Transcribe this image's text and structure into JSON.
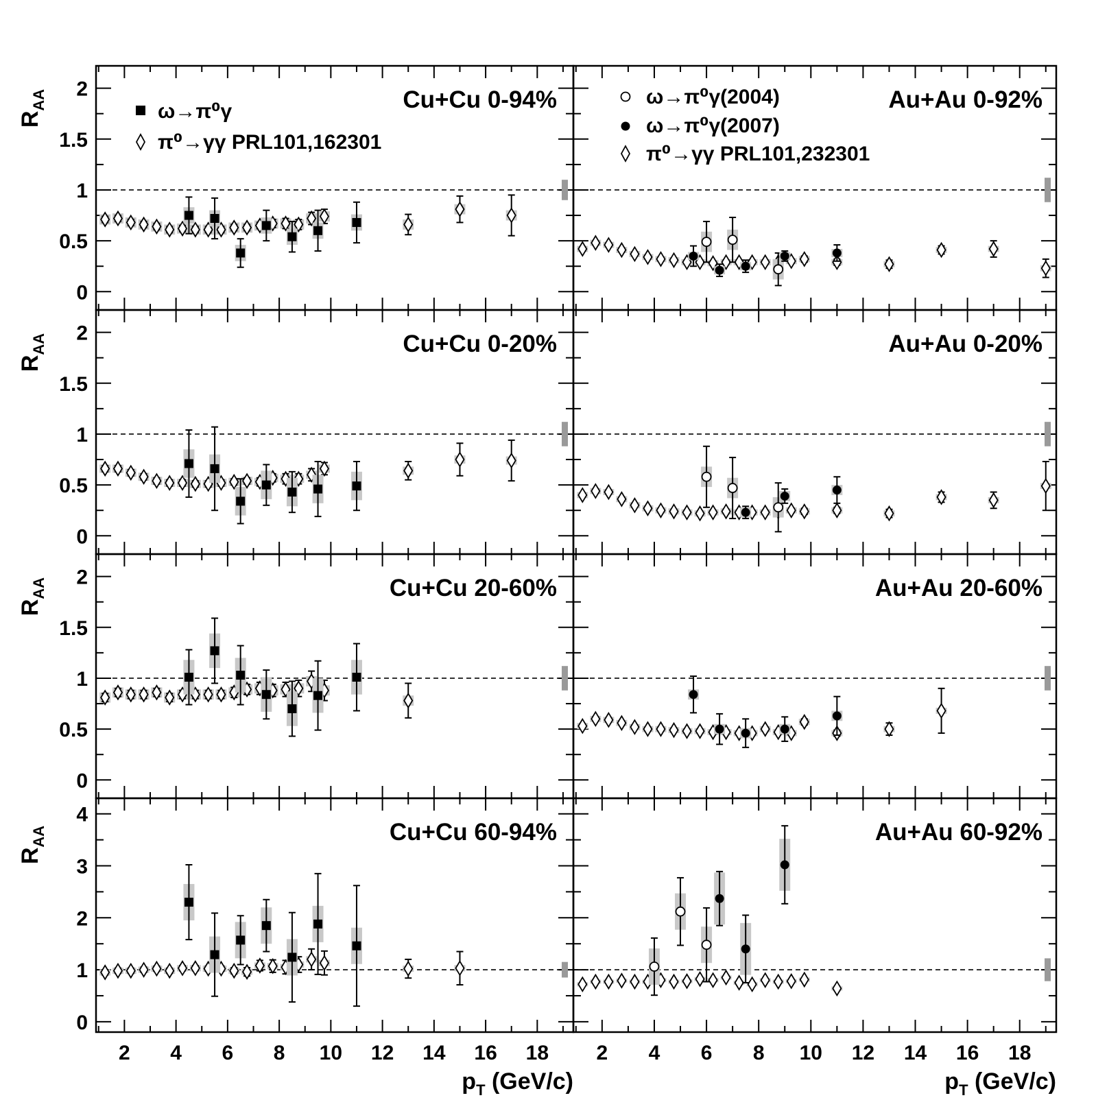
{
  "figure": {
    "y_axis_title": "R",
    "y_axis_subscript": "AA",
    "x_axis_title": "p",
    "x_axis_subscript": "T",
    "x_axis_unit": " (GeV/c)",
    "x_tick_labels": [
      "2",
      "4",
      "6",
      "8",
      "10",
      "12",
      "14",
      "16",
      "18"
    ],
    "y_tick_labels_upper": [
      "0",
      "0.5",
      "1",
      "1.5",
      "2"
    ],
    "y_tick_labels_bottom": [
      "0",
      "1",
      "2",
      "3",
      "4"
    ]
  },
  "legends": {
    "left": [
      {
        "marker": "filled-square",
        "text": "ω→π⁰γ"
      },
      {
        "marker": "open-diamond",
        "text": "π⁰→γγ PRL101,162301"
      }
    ],
    "right": [
      {
        "marker": "open-circle",
        "text": "ω→π⁰γ(2004)"
      },
      {
        "marker": "filled-circle",
        "text": "ω→π⁰γ(2007)"
      },
      {
        "marker": "open-diamond",
        "text": "π⁰→γγ PRL101,232301"
      }
    ]
  },
  "chart_data": [
    {
      "type": "scatter",
      "title": "Cu+Cu 0-94%",
      "xlabel": "",
      "ylabel": "R_AA",
      "xlim": [
        0.9,
        19.4
      ],
      "ylim": [
        -0.18,
        2.22
      ],
      "reference_line": 1,
      "norm_uncertainty": 0.1,
      "series": [
        {
          "name": "π⁰→γγ PRL101,162301",
          "marker": "open-diamond",
          "syst": 0.05,
          "x": [
            1.25,
            1.75,
            2.25,
            2.75,
            3.25,
            3.75,
            4.25,
            4.75,
            5.25,
            5.75,
            6.25,
            6.75,
            7.25,
            7.75,
            8.25,
            8.75,
            9.25,
            9.75,
            13,
            15,
            17
          ],
          "y": [
            0.71,
            0.72,
            0.68,
            0.66,
            0.64,
            0.61,
            0.62,
            0.61,
            0.61,
            0.61,
            0.63,
            0.63,
            0.65,
            0.67,
            0.67,
            0.66,
            0.72,
            0.74,
            0.66,
            0.81,
            0.75
          ],
          "err": [
            0.03,
            0.03,
            0.03,
            0.03,
            0.03,
            0.03,
            0.03,
            0.03,
            0.03,
            0.03,
            0.03,
            0.03,
            0.03,
            0.04,
            0.05,
            0.05,
            0.06,
            0.07,
            0.1,
            0.13,
            0.2
          ]
        },
        {
          "name": "ω→π⁰γ",
          "marker": "filled-square",
          "syst": 0.08,
          "x": [
            4.5,
            5.5,
            6.5,
            7.5,
            8.5,
            9.5,
            11
          ],
          "y": [
            0.75,
            0.72,
            0.38,
            0.65,
            0.54,
            0.6,
            0.68
          ],
          "err": [
            0.18,
            0.2,
            0.14,
            0.15,
            0.15,
            0.2,
            0.2
          ]
        }
      ]
    },
    {
      "type": "scatter",
      "title": "Au+Au 0-92%",
      "xlabel": "",
      "ylabel": "",
      "xlim": [
        0.9,
        19.4
      ],
      "ylim": [
        -0.18,
        2.22
      ],
      "reference_line": 1,
      "norm_uncertainty": 0.12,
      "series": [
        {
          "name": "π⁰→γγ PRL101,232301",
          "marker": "open-diamond",
          "syst": 0.03,
          "x": [
            1.25,
            1.75,
            2.25,
            2.75,
            3.25,
            3.75,
            4.25,
            4.75,
            5.25,
            5.75,
            6.25,
            6.75,
            7.25,
            7.75,
            8.25,
            8.75,
            9.25,
            9.75,
            11,
            13,
            15,
            17,
            19
          ],
          "y": [
            0.42,
            0.48,
            0.46,
            0.41,
            0.37,
            0.34,
            0.32,
            0.31,
            0.29,
            0.29,
            0.28,
            0.29,
            0.29,
            0.29,
            0.29,
            0.29,
            0.3,
            0.32,
            0.29,
            0.27,
            0.41,
            0.42,
            0.23
          ],
          "err": [
            0.02,
            0.02,
            0.02,
            0.02,
            0.02,
            0.02,
            0.02,
            0.02,
            0.02,
            0.02,
            0.02,
            0.02,
            0.02,
            0.02,
            0.02,
            0.02,
            0.02,
            0.03,
            0.03,
            0.04,
            0.04,
            0.08,
            0.09
          ]
        },
        {
          "name": "ω→π⁰γ(2004)",
          "marker": "open-circle",
          "syst": 0.1,
          "x": [
            6,
            7,
            8.75
          ],
          "y": [
            0.49,
            0.51,
            0.22
          ],
          "err": [
            0.2,
            0.22,
            0.16
          ]
        },
        {
          "name": "ω→π⁰γ(2007)",
          "marker": "filled-circle",
          "syst": 0.04,
          "x": [
            5.5,
            6.5,
            7.5,
            9,
            11
          ],
          "y": [
            0.35,
            0.21,
            0.25,
            0.35,
            0.38
          ],
          "err": [
            0.1,
            0.06,
            0.06,
            0.05,
            0.08
          ]
        }
      ]
    },
    {
      "type": "scatter",
      "title": "Cu+Cu 0-20%",
      "xlabel": "",
      "ylabel": "R_AA",
      "xlim": [
        0.9,
        19.4
      ],
      "ylim": [
        -0.18,
        2.22
      ],
      "reference_line": 1,
      "norm_uncertainty": 0.12,
      "series": [
        {
          "name": "π⁰→γγ PRL101,162301",
          "marker": "open-diamond",
          "syst": 0.04,
          "x": [
            1.25,
            1.75,
            2.25,
            2.75,
            3.25,
            3.75,
            4.25,
            4.75,
            5.25,
            5.75,
            6.25,
            6.75,
            7.25,
            7.75,
            8.25,
            8.75,
            9.25,
            9.75,
            13,
            15,
            17
          ],
          "y": [
            0.66,
            0.66,
            0.62,
            0.58,
            0.54,
            0.52,
            0.52,
            0.51,
            0.51,
            0.52,
            0.53,
            0.54,
            0.53,
            0.57,
            0.56,
            0.56,
            0.6,
            0.66,
            0.64,
            0.75,
            0.74
          ],
          "err": [
            0.03,
            0.03,
            0.03,
            0.03,
            0.03,
            0.03,
            0.03,
            0.03,
            0.03,
            0.03,
            0.03,
            0.03,
            0.04,
            0.04,
            0.05,
            0.05,
            0.06,
            0.06,
            0.09,
            0.16,
            0.2
          ]
        },
        {
          "name": "ω→π⁰γ",
          "marker": "filled-square",
          "syst": 0.14,
          "x": [
            4.5,
            5.5,
            6.5,
            7.5,
            8.5,
            9.5,
            11
          ],
          "y": [
            0.71,
            0.66,
            0.34,
            0.5,
            0.43,
            0.46,
            0.49
          ],
          "err": [
            0.33,
            0.41,
            0.22,
            0.2,
            0.2,
            0.27,
            0.24
          ]
        }
      ]
    },
    {
      "type": "scatter",
      "title": "Au+Au 0-20%",
      "xlabel": "",
      "ylabel": "",
      "xlim": [
        0.9,
        19.4
      ],
      "ylim": [
        -0.18,
        2.22
      ],
      "reference_line": 1,
      "norm_uncertainty": 0.12,
      "series": [
        {
          "name": "π⁰→γγ PRL101,232301",
          "marker": "open-diamond",
          "syst": 0.03,
          "x": [
            1.25,
            1.75,
            2.25,
            2.75,
            3.25,
            3.75,
            4.25,
            4.75,
            5.25,
            5.75,
            6.25,
            6.75,
            7.25,
            7.75,
            8.25,
            8.75,
            9.25,
            9.75,
            11,
            13,
            15,
            17,
            19
          ],
          "y": [
            0.4,
            0.44,
            0.43,
            0.36,
            0.3,
            0.27,
            0.25,
            0.24,
            0.23,
            0.22,
            0.23,
            0.24,
            0.23,
            0.23,
            0.23,
            0.24,
            0.25,
            0.24,
            0.25,
            0.22,
            0.38,
            0.35,
            0.49
          ],
          "err": [
            0.02,
            0.02,
            0.02,
            0.02,
            0.02,
            0.02,
            0.02,
            0.02,
            0.02,
            0.02,
            0.02,
            0.02,
            0.02,
            0.02,
            0.02,
            0.02,
            0.02,
            0.03,
            0.03,
            0.04,
            0.05,
            0.08,
            0.24
          ]
        },
        {
          "name": "ω→π⁰γ(2004)",
          "marker": "open-circle",
          "syst": 0.1,
          "x": [
            6,
            7,
            8.75
          ],
          "y": [
            0.58,
            0.47,
            0.28
          ],
          "err": [
            0.3,
            0.3,
            0.24
          ]
        },
        {
          "name": "ω→π⁰γ(2007)",
          "marker": "filled-circle",
          "syst": 0.05,
          "x": [
            7.5,
            9,
            11
          ],
          "y": [
            0.23,
            0.39,
            0.45
          ],
          "err": [
            0.06,
            0.07,
            0.13
          ]
        }
      ]
    },
    {
      "type": "scatter",
      "title": "Cu+Cu 20-60%",
      "xlabel": "",
      "ylabel": "R_AA",
      "xlim": [
        0.9,
        19.4
      ],
      "ylim": [
        -0.18,
        2.22
      ],
      "reference_line": 1,
      "norm_uncertainty": 0.12,
      "series": [
        {
          "name": "π⁰→γγ PRL101,162301",
          "marker": "open-diamond",
          "syst": 0.05,
          "x": [
            1.25,
            1.75,
            2.25,
            2.75,
            3.25,
            3.75,
            4.25,
            4.75,
            5.25,
            5.75,
            6.25,
            6.75,
            7.25,
            7.75,
            8.25,
            8.75,
            9.25,
            9.75,
            13
          ],
          "y": [
            0.81,
            0.86,
            0.84,
            0.84,
            0.86,
            0.81,
            0.84,
            0.84,
            0.84,
            0.84,
            0.86,
            0.89,
            0.9,
            0.88,
            0.89,
            0.9,
            0.97,
            0.88,
            0.78
          ],
          "err": [
            0.04,
            0.04,
            0.04,
            0.04,
            0.04,
            0.04,
            0.04,
            0.04,
            0.04,
            0.04,
            0.05,
            0.05,
            0.06,
            0.06,
            0.07,
            0.08,
            0.1,
            0.1,
            0.17
          ]
        },
        {
          "name": "ω→π⁰γ",
          "marker": "filled-square",
          "syst": 0.17,
          "x": [
            4.5,
            5.5,
            6.5,
            7.5,
            8.5,
            9.5,
            11
          ],
          "y": [
            1.01,
            1.27,
            1.03,
            0.84,
            0.7,
            0.83,
            1.01
          ],
          "err": [
            0.27,
            0.32,
            0.29,
            0.24,
            0.27,
            0.34,
            0.33
          ]
        }
      ]
    },
    {
      "type": "scatter",
      "title": "Au+Au 20-60%",
      "xlabel": "",
      "ylabel": "",
      "xlim": [
        0.9,
        19.4
      ],
      "ylim": [
        -0.18,
        2.22
      ],
      "reference_line": 1,
      "norm_uncertainty": 0.12,
      "series": [
        {
          "name": "π⁰→γγ PRL101,232301",
          "marker": "open-diamond",
          "syst": 0.03,
          "x": [
            1.25,
            1.75,
            2.25,
            2.75,
            3.25,
            3.75,
            4.25,
            4.75,
            5.25,
            5.75,
            6.25,
            6.75,
            7.25,
            7.75,
            8.25,
            8.75,
            9.25,
            9.75,
            11,
            13,
            15
          ],
          "y": [
            0.53,
            0.6,
            0.59,
            0.56,
            0.52,
            0.5,
            0.5,
            0.49,
            0.48,
            0.48,
            0.47,
            0.47,
            0.46,
            0.46,
            0.5,
            0.47,
            0.46,
            0.57,
            0.46,
            0.5,
            0.68
          ],
          "err": [
            0.02,
            0.02,
            0.02,
            0.02,
            0.02,
            0.02,
            0.02,
            0.02,
            0.02,
            0.02,
            0.02,
            0.02,
            0.02,
            0.02,
            0.02,
            0.02,
            0.02,
            0.03,
            0.03,
            0.06,
            0.22
          ]
        },
        {
          "name": "ω→π⁰γ(2007)",
          "marker": "filled-circle",
          "syst": 0.05,
          "x": [
            5.5,
            6.5,
            7.5,
            9,
            11
          ],
          "y": [
            0.84,
            0.5,
            0.46,
            0.5,
            0.63
          ],
          "err": [
            0.18,
            0.15,
            0.14,
            0.12,
            0.19
          ]
        }
      ]
    },
    {
      "type": "scatter",
      "title": "Cu+Cu 60-94%",
      "xlabel": "p_T (GeV/c)",
      "ylabel": "R_AA",
      "xlim": [
        0.9,
        19.4
      ],
      "ylim": [
        -0.2,
        4.3
      ],
      "reference_line": 1,
      "norm_uncertainty": 0.15,
      "series": [
        {
          "name": "π⁰→γγ PRL101,162301",
          "marker": "open-diamond",
          "syst": 0.06,
          "x": [
            1.25,
            1.75,
            2.25,
            2.75,
            3.25,
            3.75,
            4.25,
            4.75,
            5.25,
            5.75,
            6.25,
            6.75,
            7.25,
            7.75,
            8.25,
            8.75,
            9.25,
            9.75,
            13,
            15
          ],
          "y": [
            0.95,
            0.98,
            0.98,
            1.0,
            1.02,
            0.98,
            1.03,
            1.03,
            1.02,
            1.02,
            0.98,
            0.96,
            1.08,
            1.07,
            1.05,
            1.1,
            1.2,
            1.13,
            1.02,
            1.03
          ],
          "err": [
            0.05,
            0.05,
            0.05,
            0.05,
            0.05,
            0.05,
            0.05,
            0.05,
            0.05,
            0.05,
            0.06,
            0.08,
            0.1,
            0.12,
            0.13,
            0.15,
            0.2,
            0.23,
            0.18,
            0.32
          ]
        },
        {
          "name": "ω→π⁰γ",
          "marker": "filled-square",
          "syst": 0.35,
          "x": [
            4.5,
            5.5,
            6.5,
            7.5,
            8.5,
            9.5,
            11
          ],
          "y": [
            2.3,
            1.29,
            1.57,
            1.85,
            1.24,
            1.88,
            1.46
          ],
          "err": [
            0.72,
            0.8,
            0.47,
            0.5,
            0.86,
            0.97,
            1.16
          ]
        }
      ]
    },
    {
      "type": "scatter",
      "title": "Au+Au 60-92%",
      "xlabel": "p_T (GeV/c)",
      "ylabel": "",
      "xlim": [
        0.9,
        19.4
      ],
      "ylim": [
        -0.2,
        4.3
      ],
      "reference_line": 1,
      "norm_uncertainty": 0.22,
      "series": [
        {
          "name": "π⁰→γγ PRL101,232301",
          "marker": "open-diamond",
          "syst": 0.04,
          "x": [
            1.25,
            1.75,
            2.25,
            2.75,
            3.25,
            3.75,
            4.25,
            4.75,
            5.25,
            5.75,
            6.25,
            6.75,
            7.25,
            7.75,
            8.25,
            8.75,
            9.25,
            9.75,
            11
          ],
          "y": [
            0.72,
            0.77,
            0.77,
            0.79,
            0.77,
            0.77,
            0.8,
            0.77,
            0.78,
            0.82,
            0.8,
            0.85,
            0.75,
            0.72,
            0.8,
            0.77,
            0.78,
            0.81,
            0.64
          ],
          "err": [
            0.03,
            0.03,
            0.03,
            0.03,
            0.03,
            0.03,
            0.03,
            0.03,
            0.03,
            0.03,
            0.03,
            0.03,
            0.03,
            0.03,
            0.03,
            0.03,
            0.03,
            0.03,
            0.04
          ]
        },
        {
          "name": "ω→π⁰γ(2004)",
          "marker": "open-circle",
          "syst": 0.35,
          "x": [
            4,
            5,
            6
          ],
          "y": [
            1.06,
            2.12,
            1.48
          ],
          "err": [
            0.55,
            0.65,
            0.71
          ]
        },
        {
          "name": "ω→π⁰γ(2007)",
          "marker": "filled-circle",
          "syst": 0.5,
          "x": [
            6.5,
            7.5,
            9
          ],
          "y": [
            2.37,
            1.4,
            3.02
          ],
          "err": [
            0.52,
            0.65,
            0.75
          ]
        }
      ]
    }
  ]
}
